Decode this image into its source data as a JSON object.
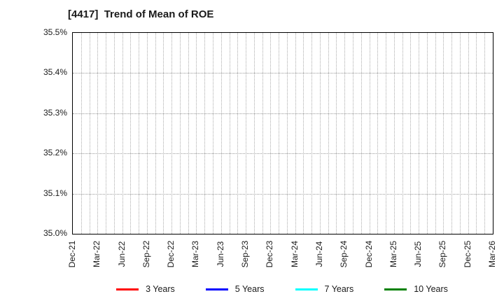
{
  "chart_data": {
    "type": "line",
    "title": "[4417]  Trend of Mean of ROE",
    "xlabel": "",
    "ylabel": "",
    "ylim": [
      35.0,
      35.5
    ],
    "y_unit": "%",
    "y_tick_labels": [
      "35.5%",
      "35.4%",
      "35.3%",
      "35.2%",
      "35.1%",
      "35.0%"
    ],
    "x_tick_labels": [
      "Dec-21",
      "Mar-22",
      "Jun-22",
      "Sep-22",
      "Dec-22",
      "Mar-23",
      "Jun-23",
      "Sep-23",
      "Dec-23",
      "Mar-24",
      "Jun-24",
      "Sep-24",
      "Dec-24",
      "Mar-25",
      "Jun-25",
      "Sep-25",
      "Dec-25",
      "Mar-26"
    ],
    "grid": true,
    "minor_x_gridline_interval_months": 1,
    "legend_position": "bottom-center",
    "series": [
      {
        "name": "3 Years",
        "color": "#ff0000",
        "values": []
      },
      {
        "name": "5 Years",
        "color": "#0000ff",
        "values": []
      },
      {
        "name": "7 Years",
        "color": "#00ffff",
        "values": []
      },
      {
        "name": "10 Years",
        "color": "#008000",
        "values": []
      }
    ]
  },
  "colors": {
    "background": "#ffffff",
    "plot_border": "#000000",
    "gridline": "#aaaaaa",
    "text": "#1a1a1a"
  }
}
